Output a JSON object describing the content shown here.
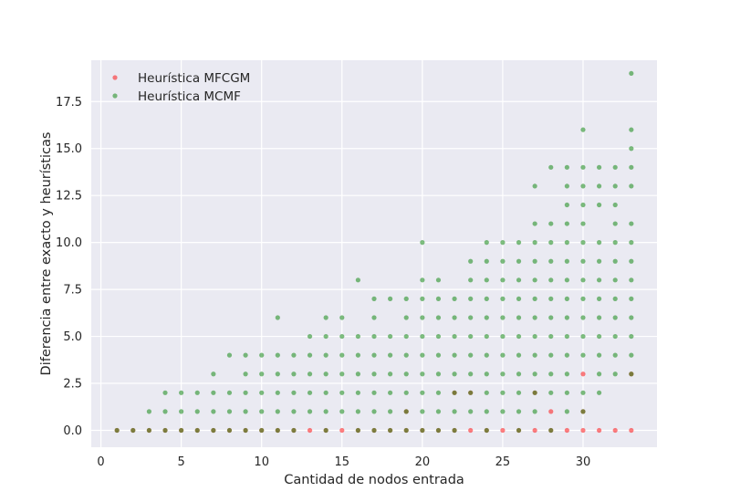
{
  "chart_data": {
    "type": "scatter",
    "title": "",
    "xlabel": "Cantidad de nodos entrada",
    "ylabel": "Diferencia entre exacto y heurísticas",
    "xlim": [
      -0.6,
      34.6
    ],
    "ylim": [
      -0.9,
      19.7
    ],
    "xticks": [
      0,
      5,
      10,
      15,
      20,
      25,
      30
    ],
    "yticks": [
      0.0,
      2.5,
      5.0,
      7.5,
      10.0,
      12.5,
      15.0,
      17.5
    ],
    "xtick_labels": [
      "0",
      "5",
      "10",
      "15",
      "20",
      "25",
      "30"
    ],
    "ytick_labels": [
      "0.0",
      "2.5",
      "5.0",
      "7.5",
      "10.0",
      "12.5",
      "15.0",
      "17.5"
    ],
    "grid": true,
    "legend_position": "top-left",
    "series": [
      {
        "name": "Heurística MFCGM",
        "color": "#ff0000",
        "alpha": 0.5,
        "points": [
          [
            1,
            0
          ],
          [
            2,
            0
          ],
          [
            3,
            0
          ],
          [
            4,
            0
          ],
          [
            5,
            0
          ],
          [
            6,
            0
          ],
          [
            7,
            0
          ],
          [
            8,
            0
          ],
          [
            9,
            0
          ],
          [
            10,
            0
          ],
          [
            11,
            0
          ],
          [
            12,
            0
          ],
          [
            13,
            0
          ],
          [
            14,
            0
          ],
          [
            15,
            0
          ],
          [
            16,
            0
          ],
          [
            17,
            0
          ],
          [
            18,
            0
          ],
          [
            19,
            0
          ],
          [
            20,
            0
          ],
          [
            21,
            0
          ],
          [
            22,
            0
          ],
          [
            23,
            0
          ],
          [
            24,
            0
          ],
          [
            25,
            0
          ],
          [
            26,
            0
          ],
          [
            27,
            0
          ],
          [
            28,
            0
          ],
          [
            29,
            0
          ],
          [
            30,
            0
          ],
          [
            31,
            0
          ],
          [
            32,
            0
          ],
          [
            33,
            0
          ],
          [
            30,
            3
          ],
          [
            19,
            1
          ],
          [
            23,
            2
          ],
          [
            27,
            2
          ],
          [
            28,
            1
          ],
          [
            30,
            1
          ],
          [
            33,
            3
          ],
          [
            22,
            2
          ]
        ]
      },
      {
        "name": "Heurística MCMF",
        "color": "#008000",
        "alpha": 0.5,
        "points": [
          [
            1,
            0
          ],
          [
            2,
            0
          ],
          [
            3,
            0
          ],
          [
            4,
            0
          ],
          [
            5,
            0
          ],
          [
            6,
            0
          ],
          [
            7,
            0
          ],
          [
            8,
            0
          ],
          [
            9,
            0
          ],
          [
            10,
            0
          ],
          [
            11,
            0
          ],
          [
            12,
            0
          ],
          [
            14,
            0
          ],
          [
            16,
            0
          ],
          [
            17,
            0
          ],
          [
            18,
            0
          ],
          [
            19,
            0
          ],
          [
            20,
            0
          ],
          [
            21,
            0
          ],
          [
            22,
            0
          ],
          [
            24,
            0
          ],
          [
            26,
            0
          ],
          [
            28,
            0
          ],
          [
            3,
            1
          ],
          [
            4,
            1
          ],
          [
            5,
            1
          ],
          [
            6,
            1
          ],
          [
            7,
            1
          ],
          [
            8,
            1
          ],
          [
            9,
            1
          ],
          [
            10,
            1
          ],
          [
            11,
            1
          ],
          [
            12,
            1
          ],
          [
            13,
            1
          ],
          [
            14,
            1
          ],
          [
            15,
            1
          ],
          [
            16,
            1
          ],
          [
            17,
            1
          ],
          [
            18,
            1
          ],
          [
            19,
            1
          ],
          [
            20,
            1
          ],
          [
            21,
            1
          ],
          [
            22,
            1
          ],
          [
            23,
            1
          ],
          [
            24,
            1
          ],
          [
            25,
            1
          ],
          [
            26,
            1
          ],
          [
            27,
            1
          ],
          [
            29,
            1
          ],
          [
            30,
            1
          ],
          [
            4,
            2
          ],
          [
            5,
            2
          ],
          [
            6,
            2
          ],
          [
            7,
            2
          ],
          [
            8,
            2
          ],
          [
            9,
            2
          ],
          [
            10,
            2
          ],
          [
            11,
            2
          ],
          [
            12,
            2
          ],
          [
            13,
            2
          ],
          [
            14,
            2
          ],
          [
            15,
            2
          ],
          [
            16,
            2
          ],
          [
            17,
            2
          ],
          [
            18,
            2
          ],
          [
            19,
            2
          ],
          [
            20,
            2
          ],
          [
            21,
            2
          ],
          [
            22,
            2
          ],
          [
            23,
            2
          ],
          [
            24,
            2
          ],
          [
            25,
            2
          ],
          [
            26,
            2
          ],
          [
            27,
            2
          ],
          [
            28,
            2
          ],
          [
            29,
            2
          ],
          [
            30,
            2
          ],
          [
            31,
            2
          ],
          [
            7,
            3
          ],
          [
            9,
            3
          ],
          [
            10,
            3
          ],
          [
            11,
            3
          ],
          [
            12,
            3
          ],
          [
            13,
            3
          ],
          [
            14,
            3
          ],
          [
            15,
            3
          ],
          [
            16,
            3
          ],
          [
            17,
            3
          ],
          [
            18,
            3
          ],
          [
            19,
            3
          ],
          [
            20,
            3
          ],
          [
            21,
            3
          ],
          [
            22,
            3
          ],
          [
            23,
            3
          ],
          [
            24,
            3
          ],
          [
            25,
            3
          ],
          [
            26,
            3
          ],
          [
            27,
            3
          ],
          [
            28,
            3
          ],
          [
            29,
            3
          ],
          [
            31,
            3
          ],
          [
            32,
            3
          ],
          [
            33,
            3
          ],
          [
            8,
            4
          ],
          [
            9,
            4
          ],
          [
            10,
            4
          ],
          [
            11,
            4
          ],
          [
            12,
            4
          ],
          [
            13,
            4
          ],
          [
            14,
            4
          ],
          [
            15,
            4
          ],
          [
            16,
            4
          ],
          [
            17,
            4
          ],
          [
            18,
            4
          ],
          [
            19,
            4
          ],
          [
            20,
            4
          ],
          [
            21,
            4
          ],
          [
            22,
            4
          ],
          [
            23,
            4
          ],
          [
            24,
            4
          ],
          [
            25,
            4
          ],
          [
            26,
            4
          ],
          [
            27,
            4
          ],
          [
            28,
            4
          ],
          [
            29,
            4
          ],
          [
            30,
            4
          ],
          [
            31,
            4
          ],
          [
            32,
            4
          ],
          [
            33,
            4
          ],
          [
            13,
            5
          ],
          [
            14,
            5
          ],
          [
            15,
            5
          ],
          [
            16,
            5
          ],
          [
            17,
            5
          ],
          [
            18,
            5
          ],
          [
            19,
            5
          ],
          [
            20,
            5
          ],
          [
            21,
            5
          ],
          [
            22,
            5
          ],
          [
            23,
            5
          ],
          [
            24,
            5
          ],
          [
            25,
            5
          ],
          [
            26,
            5
          ],
          [
            27,
            5
          ],
          [
            28,
            5
          ],
          [
            29,
            5
          ],
          [
            30,
            5
          ],
          [
            31,
            5
          ],
          [
            32,
            5
          ],
          [
            33,
            5
          ],
          [
            11,
            6
          ],
          [
            14,
            6
          ],
          [
            15,
            6
          ],
          [
            17,
            6
          ],
          [
            19,
            6
          ],
          [
            20,
            6
          ],
          [
            21,
            6
          ],
          [
            22,
            6
          ],
          [
            23,
            6
          ],
          [
            24,
            6
          ],
          [
            25,
            6
          ],
          [
            26,
            6
          ],
          [
            27,
            6
          ],
          [
            28,
            6
          ],
          [
            29,
            6
          ],
          [
            30,
            6
          ],
          [
            31,
            6
          ],
          [
            32,
            6
          ],
          [
            33,
            6
          ],
          [
            17,
            7
          ],
          [
            18,
            7
          ],
          [
            19,
            7
          ],
          [
            20,
            7
          ],
          [
            21,
            7
          ],
          [
            22,
            7
          ],
          [
            23,
            7
          ],
          [
            24,
            7
          ],
          [
            25,
            7
          ],
          [
            26,
            7
          ],
          [
            27,
            7
          ],
          [
            28,
            7
          ],
          [
            29,
            7
          ],
          [
            30,
            7
          ],
          [
            31,
            7
          ],
          [
            32,
            7
          ],
          [
            33,
            7
          ],
          [
            16,
            8
          ],
          [
            20,
            8
          ],
          [
            21,
            8
          ],
          [
            23,
            8
          ],
          [
            24,
            8
          ],
          [
            25,
            8
          ],
          [
            26,
            8
          ],
          [
            27,
            8
          ],
          [
            28,
            8
          ],
          [
            29,
            8
          ],
          [
            30,
            8
          ],
          [
            31,
            8
          ],
          [
            32,
            8
          ],
          [
            33,
            8
          ],
          [
            23,
            9
          ],
          [
            24,
            9
          ],
          [
            25,
            9
          ],
          [
            26,
            9
          ],
          [
            27,
            9
          ],
          [
            28,
            9
          ],
          [
            29,
            9
          ],
          [
            30,
            9
          ],
          [
            31,
            9
          ],
          [
            32,
            9
          ],
          [
            33,
            9
          ],
          [
            20,
            10
          ],
          [
            24,
            10
          ],
          [
            25,
            10
          ],
          [
            26,
            10
          ],
          [
            27,
            10
          ],
          [
            28,
            10
          ],
          [
            29,
            10
          ],
          [
            30,
            10
          ],
          [
            31,
            10
          ],
          [
            32,
            10
          ],
          [
            33,
            10
          ],
          [
            27,
            11
          ],
          [
            28,
            11
          ],
          [
            29,
            11
          ],
          [
            30,
            11
          ],
          [
            32,
            11
          ],
          [
            33,
            11
          ],
          [
            29,
            12
          ],
          [
            30,
            12
          ],
          [
            31,
            12
          ],
          [
            32,
            12
          ],
          [
            27,
            13
          ],
          [
            29,
            13
          ],
          [
            30,
            13
          ],
          [
            31,
            13
          ],
          [
            32,
            13
          ],
          [
            33,
            13
          ],
          [
            28,
            14
          ],
          [
            29,
            14
          ],
          [
            30,
            14
          ],
          [
            31,
            14
          ],
          [
            32,
            14
          ],
          [
            33,
            14
          ],
          [
            33,
            15
          ],
          [
            30,
            16
          ],
          [
            33,
            16
          ],
          [
            33,
            19
          ]
        ]
      }
    ]
  }
}
